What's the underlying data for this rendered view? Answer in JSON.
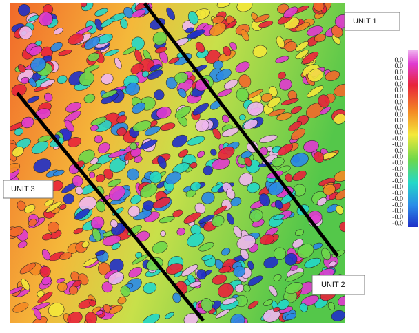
{
  "map": {
    "labels": {
      "unit_1": "UNIT 1",
      "unit_2": "UNIT 2",
      "unit_3": "UNIT 3"
    }
  },
  "colorbar": {
    "labels": [
      "0.0",
      "0.0",
      "0.0",
      "0.0",
      "0.0",
      "0.0",
      "0.0",
      "0.0",
      "0.0",
      "0.0",
      "0.0",
      "0.0",
      "0.0",
      "-0.0",
      "-0.0",
      "-0.0",
      "-0.0",
      "-0.0",
      "-0.0",
      "-0.0",
      "-0.0",
      "-0.0",
      "-0.0",
      "-0.0",
      "-0.0",
      "-0.0",
      "-0.0",
      "-0.0"
    ]
  }
}
